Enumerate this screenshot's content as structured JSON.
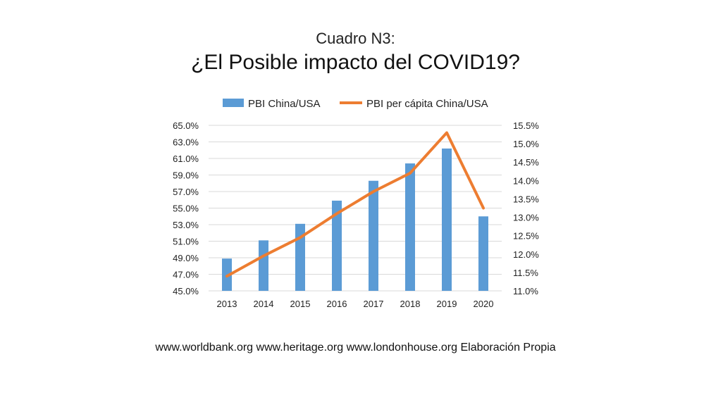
{
  "slide": {
    "subtitle": "Cuadro N3:",
    "title": "¿El Posible impacto del COVID19?",
    "source": "www.worldbank.org www.heritage.org www.londonhouse.org Elaboración Propia"
  },
  "chart_data": {
    "type": "bar",
    "categories": [
      "2013",
      "2014",
      "2015",
      "2016",
      "2017",
      "2018",
      "2019",
      "2020"
    ],
    "series": [
      {
        "name": "PBI China/USA",
        "type": "bar",
        "axis": "left",
        "color": "#5b9bd5",
        "values": [
          48.9,
          51.1,
          53.1,
          55.9,
          58.3,
          60.4,
          62.2,
          54.0
        ]
      },
      {
        "name": "PBI per cápita China/USA",
        "type": "line",
        "axis": "right",
        "color": "#ed7d31",
        "values": [
          11.4,
          11.95,
          12.45,
          13.1,
          13.7,
          14.2,
          15.3,
          13.25
        ]
      }
    ],
    "y_left": {
      "min": 45,
      "max": 65,
      "step": 2,
      "ticks": [
        "45.0%",
        "47.0%",
        "49.0%",
        "51.0%",
        "53.0%",
        "55.0%",
        "57.0%",
        "59.0%",
        "61.0%",
        "63.0%",
        "65.0%"
      ]
    },
    "y_right": {
      "min": 11,
      "max": 15.5,
      "step": 0.5,
      "ticks": [
        "11.0%",
        "11.5%",
        "12.0%",
        "12.5%",
        "13.0%",
        "13.5%",
        "14.0%",
        "14.5%",
        "15.0%",
        "15.5%"
      ]
    },
    "grid": true,
    "legend_position": "top"
  }
}
